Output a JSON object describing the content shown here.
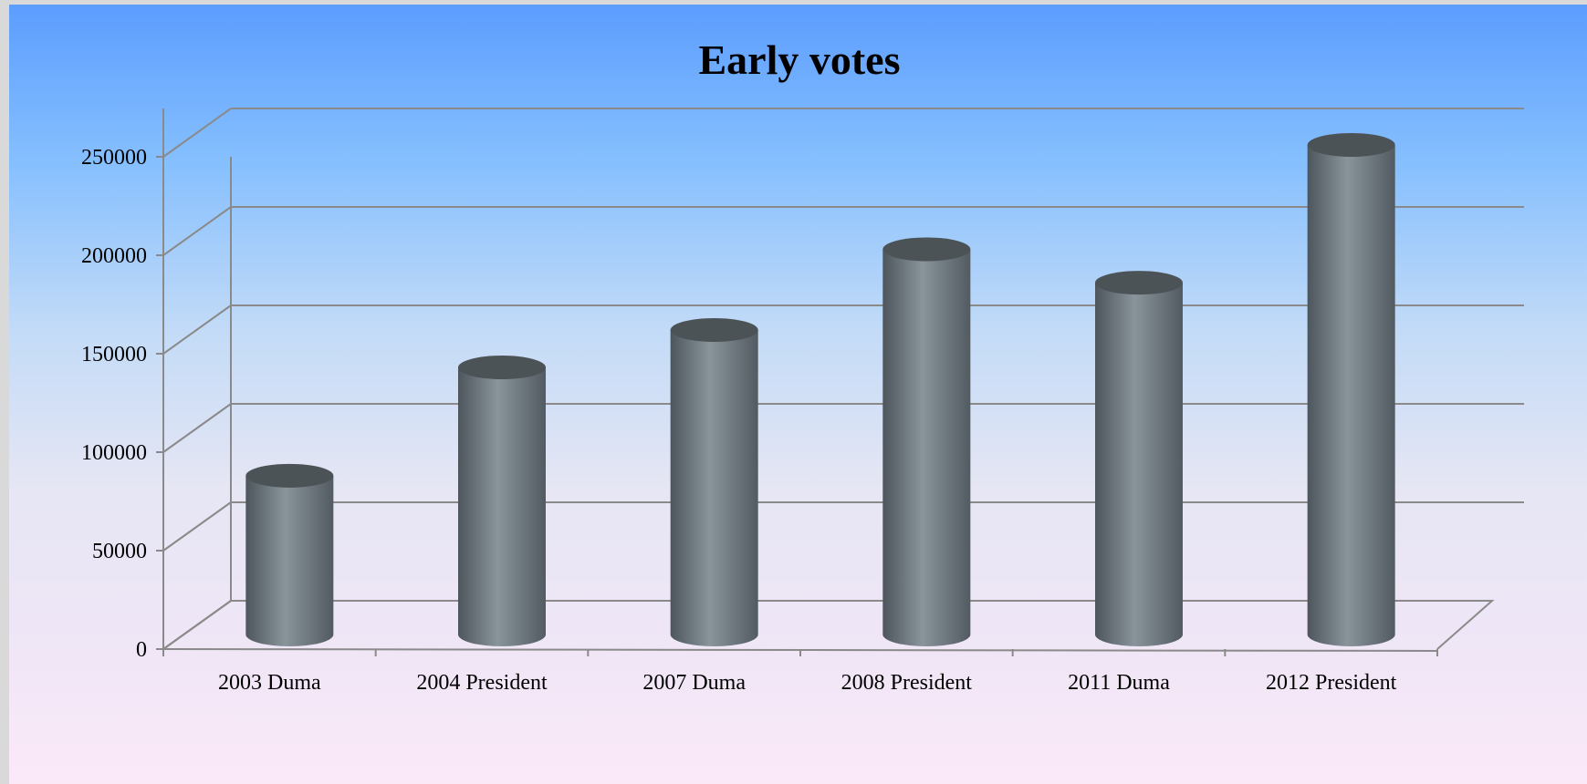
{
  "colors": {
    "bar": "#6c767d",
    "bar_highlight": "#89949b",
    "bar_top": "#4c5357",
    "grid": "#8a8a8a"
  },
  "chart_data": {
    "type": "bar",
    "title": "Early votes",
    "xlabel": "",
    "ylabel": "",
    "categories": [
      "2003 Duma",
      "2004 President",
      "2007 Duma",
      "2008 President",
      "2011 Duma",
      "2012 President"
    ],
    "values": [
      76000,
      131000,
      150000,
      191000,
      174000,
      244000
    ],
    "ylim": [
      0,
      250000
    ],
    "yticks": [
      "0",
      "50000",
      "100000",
      "150000",
      "200000",
      "250000"
    ],
    "grid": true,
    "legend": "none",
    "style": "3d-cylinder"
  }
}
